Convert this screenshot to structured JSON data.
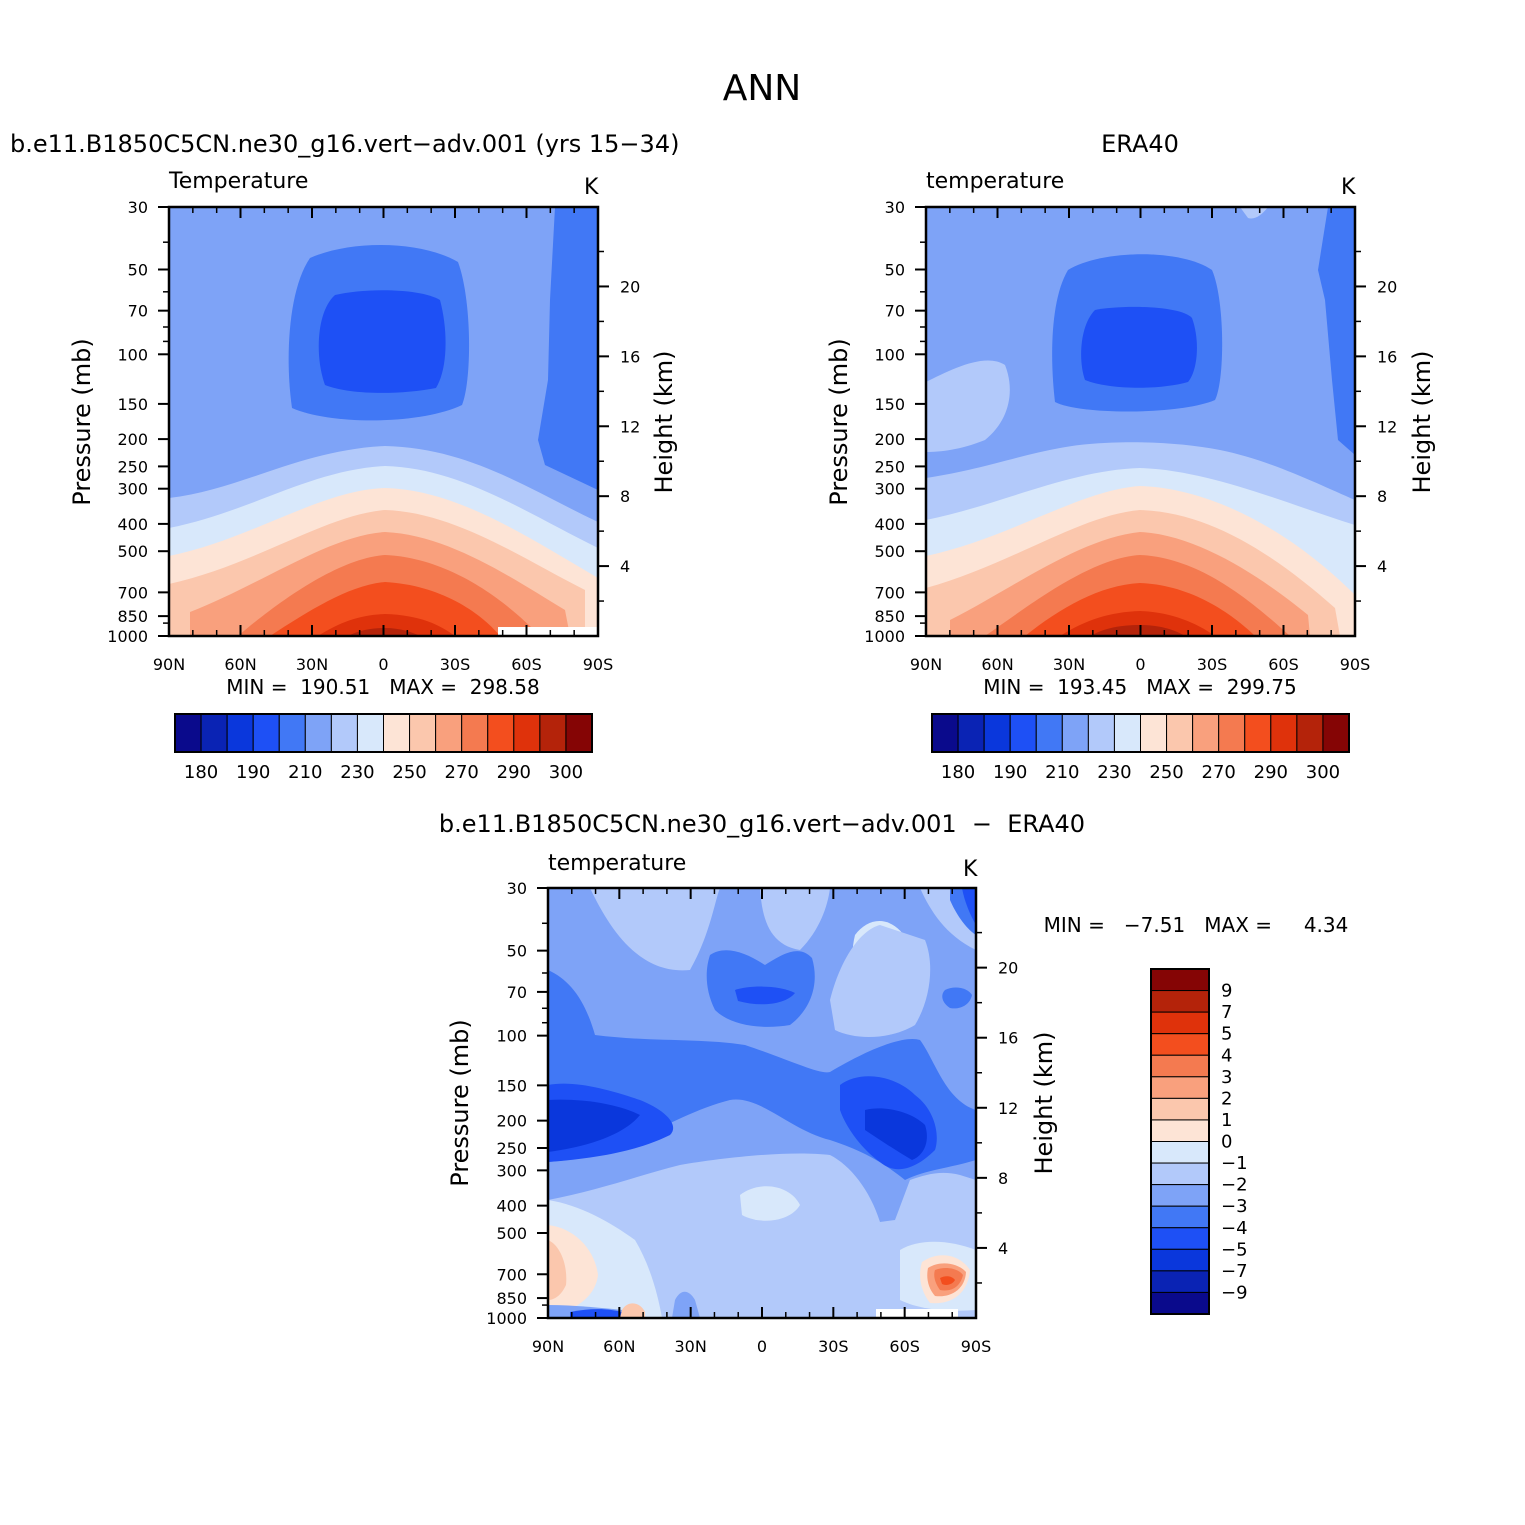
{
  "figure_title": "ANN",
  "colors": {
    "temp_fill": [
      "#0a0a8c",
      "#0a23b4",
      "#0a37dc",
      "#1e50f5",
      "#4178f5",
      "#7ea3f7",
      "#b2c9fa",
      "#d8e8fb",
      "#fde4d6",
      "#fbc7ad",
      "#f9a07d",
      "#f47a50",
      "#f34e1e",
      "#df320b",
      "#b4230a",
      "#850505"
    ],
    "diff_fill": [
      "#0a0a8c",
      "#0a23b4",
      "#0a37dc",
      "#1e50f5",
      "#4178f5",
      "#7ea3f7",
      "#b2c9fa",
      "#d8e8fb",
      "#fde4d6",
      "#fbc7ad",
      "#f9a07d",
      "#f47a50",
      "#f34e1e",
      "#df320b",
      "#b4230a",
      "#850505"
    ]
  },
  "chart_data": [
    {
      "type": "heatmap",
      "title": "b.e11.B1850C5CN.ne30_g16.vert−adv.001 (yrs 15−34)",
      "left_title": "Temperature",
      "units": "K",
      "ylabel": "Pressure (mb)",
      "ylabel_right": "Height (km)",
      "x_ticks": [
        "90N",
        "60N",
        "30N",
        "0",
        "30S",
        "60S",
        "90S"
      ],
      "y_ticks": [
        "30",
        "50",
        "70",
        "100",
        "150",
        "200",
        "250",
        "300",
        "400",
        "500",
        "700",
        "850",
        "1000"
      ],
      "height_ticks": [
        "20",
        "16",
        "12",
        "8",
        "4"
      ],
      "min_label": "MIN =  190.51   MAX =  298.58",
      "min": 190.51,
      "max": 298.58,
      "colorbar_labels": [
        "180",
        "190",
        "210",
        "230",
        "250",
        "270",
        "290",
        "300"
      ],
      "levels": [
        185,
        190,
        200,
        210,
        220,
        230,
        240,
        250,
        260,
        270,
        280,
        285,
        290,
        295,
        300
      ]
    },
    {
      "type": "heatmap",
      "title": "ERA40",
      "left_title": "temperature",
      "units": "K",
      "ylabel": "Pressure (mb)",
      "ylabel_right": "Height (km)",
      "x_ticks": [
        "90N",
        "60N",
        "30N",
        "0",
        "30S",
        "60S",
        "90S"
      ],
      "y_ticks": [
        "30",
        "50",
        "70",
        "100",
        "150",
        "200",
        "250",
        "300",
        "400",
        "500",
        "700",
        "850",
        "1000"
      ],
      "height_ticks": [
        "20",
        "16",
        "12",
        "8",
        "4"
      ],
      "min_label": "MIN =  193.45   MAX =  299.75",
      "min": 193.45,
      "max": 299.75,
      "colorbar_labels": [
        "180",
        "190",
        "210",
        "230",
        "250",
        "270",
        "290",
        "300"
      ],
      "levels": [
        185,
        190,
        200,
        210,
        220,
        230,
        240,
        250,
        260,
        270,
        280,
        285,
        290,
        295,
        300
      ]
    },
    {
      "type": "heatmap",
      "title": "b.e11.B1850C5CN.ne30_g16.vert−adv.001  −  ERA40",
      "left_title": "temperature",
      "units": "K",
      "ylabel": "Pressure (mb)",
      "ylabel_right": "Height (km)",
      "x_ticks": [
        "90N",
        "60N",
        "30N",
        "0",
        "30S",
        "60S",
        "90S"
      ],
      "y_ticks": [
        "30",
        "50",
        "70",
        "100",
        "150",
        "200",
        "250",
        "300",
        "400",
        "500",
        "700",
        "850",
        "1000"
      ],
      "height_ticks": [
        "20",
        "16",
        "12",
        "8",
        "4"
      ],
      "min_label": "MIN =   −7.51   MAX =     4.34",
      "min": -7.51,
      "max": 4.34,
      "colorbar_labels": [
        "9",
        "7",
        "5",
        "4",
        "3",
        "2",
        "1",
        "0",
        "−1",
        "−2",
        "−3",
        "−4",
        "−5",
        "−7",
        "−9"
      ]
    }
  ]
}
